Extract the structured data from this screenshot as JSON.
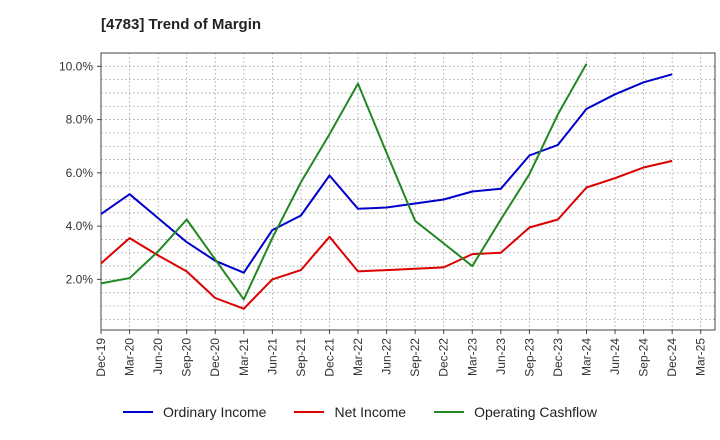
{
  "title": "[4783]  Trend of Margin",
  "chart_data": {
    "type": "line",
    "title": "[4783]  Trend of Margin",
    "xlabel": "",
    "ylabel": "",
    "categories": [
      "Dec-19",
      "Mar-20",
      "Jun-20",
      "Sep-20",
      "Dec-20",
      "Mar-21",
      "Jun-21",
      "Sep-21",
      "Dec-21",
      "Mar-22",
      "Jun-22",
      "Sep-22",
      "Dec-22",
      "Mar-23",
      "Jun-23",
      "Sep-23",
      "Dec-23",
      "Mar-24",
      "Jun-24",
      "Sep-24",
      "Dec-24",
      "Mar-25"
    ],
    "y_ticks": [
      "2.0%",
      "4.0%",
      "6.0%",
      "8.0%",
      "10.0%"
    ],
    "ylim": [
      0.1,
      10.5
    ],
    "grid": true,
    "legend_position": "bottom",
    "series": [
      {
        "name": "Ordinary Income",
        "color": "#0000cc",
        "values": [
          4.45,
          5.2,
          4.3,
          3.4,
          2.7,
          2.25,
          3.85,
          4.4,
          5.9,
          4.65,
          4.7,
          4.85,
          5.0,
          5.3,
          5.4,
          6.65,
          7.05,
          8.4,
          8.95,
          9.4,
          9.7,
          null
        ]
      },
      {
        "name": "Net Income",
        "color": "#dd0000",
        "values": [
          2.6,
          3.55,
          2.9,
          2.3,
          1.3,
          0.9,
          2.0,
          2.35,
          3.6,
          2.3,
          2.35,
          2.4,
          2.45,
          2.95,
          3.0,
          3.95,
          4.25,
          5.45,
          5.8,
          6.2,
          6.45,
          null
        ]
      },
      {
        "name": "Operating Cashflow",
        "color": "#228822",
        "values": [
          1.85,
          2.05,
          3.05,
          4.25,
          2.75,
          1.25,
          3.55,
          5.65,
          7.45,
          9.35,
          6.75,
          4.2,
          3.35,
          2.5,
          4.25,
          5.95,
          8.2,
          10.1,
          null,
          null,
          null,
          null
        ]
      }
    ]
  }
}
